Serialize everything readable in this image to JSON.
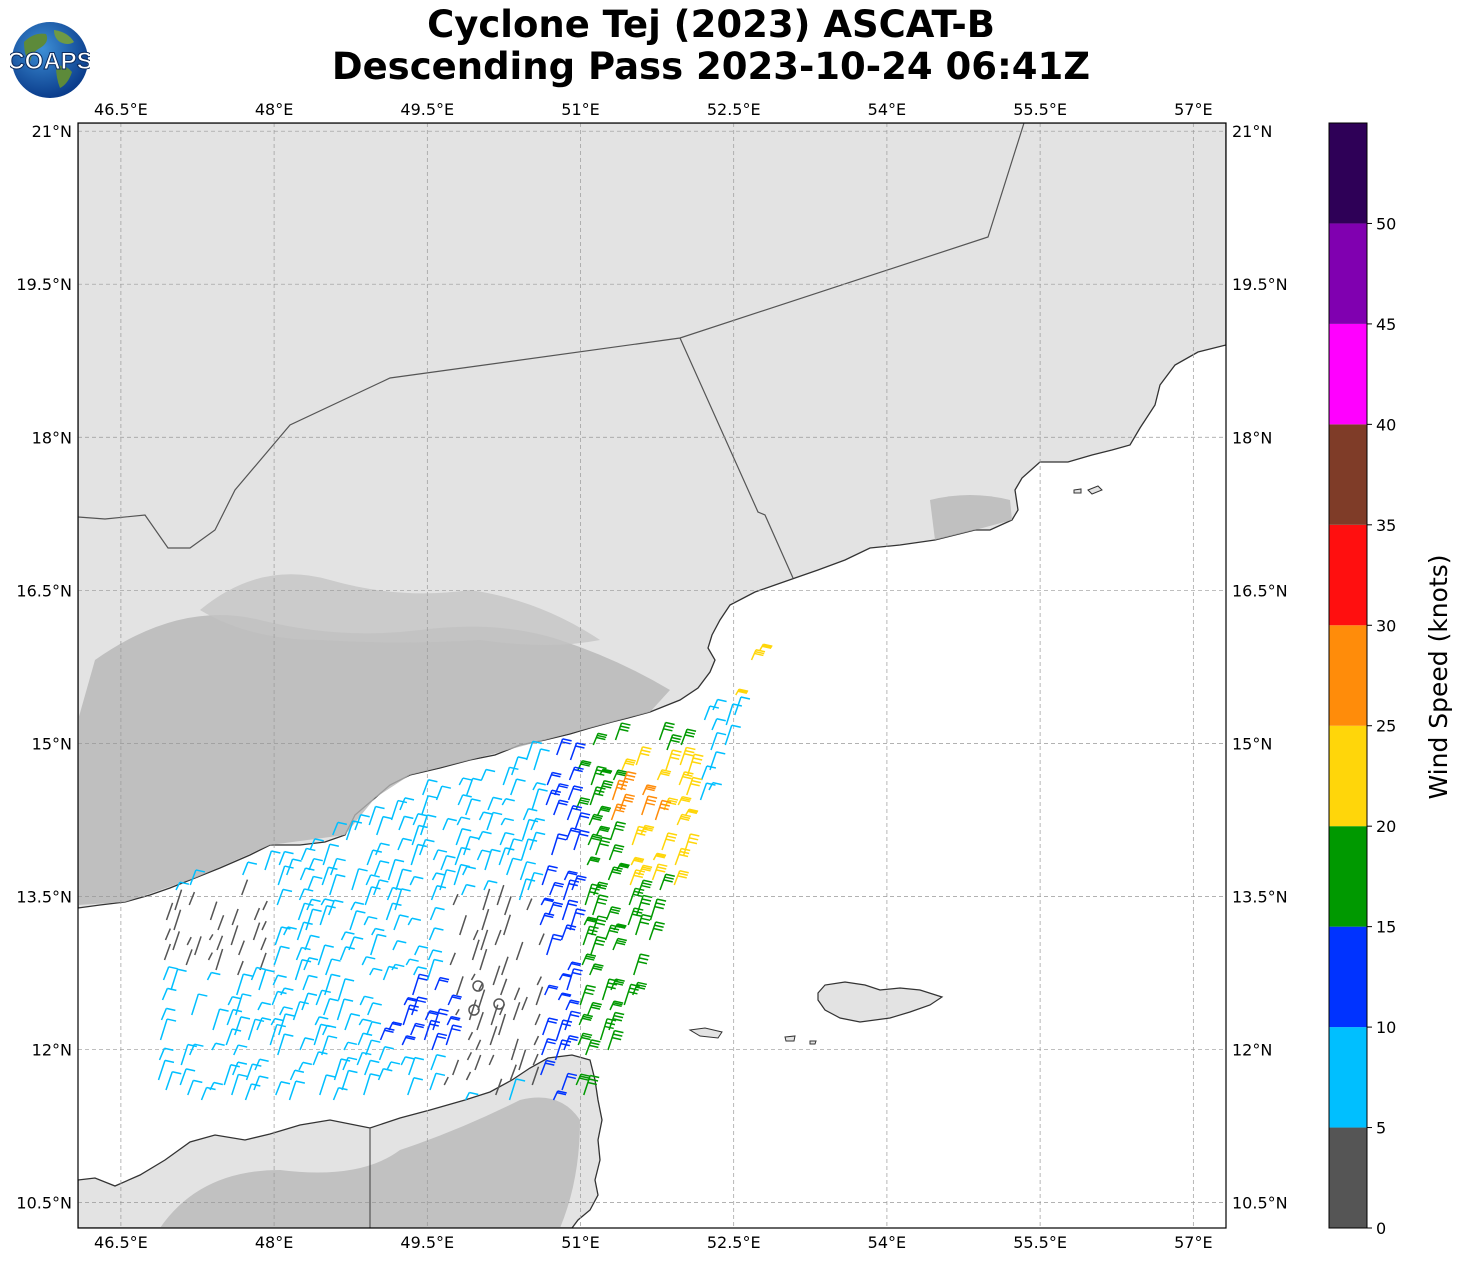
{
  "title": {
    "line1": "Cyclone Tej (2023) ASCAT-B",
    "line2": "Descending Pass 2023-10-24 06:41Z"
  },
  "logo": {
    "text": "COAPS",
    "icon": "globe-icon"
  },
  "map": {
    "lon_range": [
      46.08,
      57.32
    ],
    "lat_range": [
      10.25,
      21.08
    ],
    "lon_ticks": [
      46.5,
      48,
      49.5,
      51,
      52.5,
      54,
      55.5,
      57
    ],
    "lon_labels": [
      "46.5°E",
      "48°E",
      "49.5°E",
      "51°E",
      "52.5°E",
      "54°E",
      "55.5°E",
      "57°E"
    ],
    "lat_ticks": [
      10.5,
      12,
      13.5,
      15,
      16.5,
      18,
      19.5,
      21
    ],
    "lat_labels": [
      "10.5°N",
      "12°N",
      "13.5°N",
      "15°N",
      "16.5°N",
      "18°N",
      "19.5°N",
      "21°N"
    ],
    "grid": true,
    "land_color": "#e2e2e2",
    "highland_color": "#a8a8a8",
    "coast_color": "#333333",
    "border_color": "#555555"
  },
  "colorbar": {
    "label": "Wind Speed (knots)",
    "tick_values": [
      0,
      5,
      10,
      15,
      20,
      25,
      30,
      35,
      40,
      45,
      50
    ],
    "tick_labels": [
      "0",
      "5",
      "10",
      "15",
      "20",
      "25",
      "30",
      "35",
      "40",
      "45",
      "50"
    ],
    "bins": [
      {
        "min": 0,
        "max": 5,
        "color": "#555555"
      },
      {
        "min": 5,
        "max": 10,
        "color": "#00bfff"
      },
      {
        "min": 10,
        "max": 15,
        "color": "#0033ff"
      },
      {
        "min": 15,
        "max": 20,
        "color": "#009900"
      },
      {
        "min": 20,
        "max": 25,
        "color": "#ffd60a"
      },
      {
        "min": 25,
        "max": 30,
        "color": "#ff8c0a"
      },
      {
        "min": 30,
        "max": 35,
        "color": "#ff0f0f"
      },
      {
        "min": 35,
        "max": 40,
        "color": "#7f3c28"
      },
      {
        "min": 40,
        "max": 45,
        "color": "#ff00ff"
      },
      {
        "min": 45,
        "max": 50,
        "color": "#8000b0"
      },
      {
        "min": 50,
        "max": 55,
        "color": "#2e0057"
      }
    ]
  }
}
